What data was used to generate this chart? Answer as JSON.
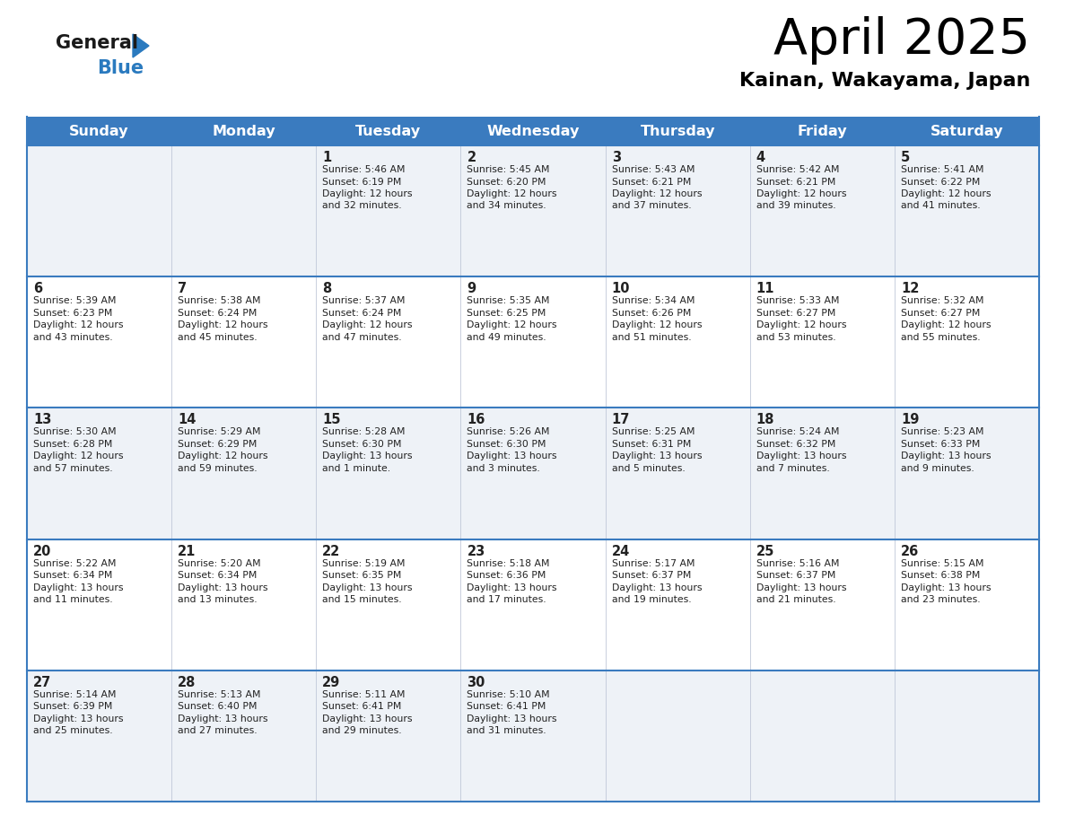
{
  "title": "April 2025",
  "subtitle": "Kainan, Wakayama, Japan",
  "header_bg": "#3a7bbf",
  "header_text_color": "#ffffff",
  "cell_bg_odd": "#eef2f7",
  "cell_bg_even": "#ffffff",
  "border_color": "#3a7bbf",
  "thin_border": "#c0c8d8",
  "text_color": "#222222",
  "day_names": [
    "Sunday",
    "Monday",
    "Tuesday",
    "Wednesday",
    "Thursday",
    "Friday",
    "Saturday"
  ],
  "logo_general_color": "#1a1a1a",
  "logo_blue_color": "#2a7abf",
  "logo_triangle_color": "#2a7abf",
  "weeks": [
    [
      {
        "day": "",
        "lines": []
      },
      {
        "day": "",
        "lines": []
      },
      {
        "day": "1",
        "lines": [
          "Sunrise: 5:46 AM",
          "Sunset: 6:19 PM",
          "Daylight: 12 hours",
          "and 32 minutes."
        ]
      },
      {
        "day": "2",
        "lines": [
          "Sunrise: 5:45 AM",
          "Sunset: 6:20 PM",
          "Daylight: 12 hours",
          "and 34 minutes."
        ]
      },
      {
        "day": "3",
        "lines": [
          "Sunrise: 5:43 AM",
          "Sunset: 6:21 PM",
          "Daylight: 12 hours",
          "and 37 minutes."
        ]
      },
      {
        "day": "4",
        "lines": [
          "Sunrise: 5:42 AM",
          "Sunset: 6:21 PM",
          "Daylight: 12 hours",
          "and 39 minutes."
        ]
      },
      {
        "day": "5",
        "lines": [
          "Sunrise: 5:41 AM",
          "Sunset: 6:22 PM",
          "Daylight: 12 hours",
          "and 41 minutes."
        ]
      }
    ],
    [
      {
        "day": "6",
        "lines": [
          "Sunrise: 5:39 AM",
          "Sunset: 6:23 PM",
          "Daylight: 12 hours",
          "and 43 minutes."
        ]
      },
      {
        "day": "7",
        "lines": [
          "Sunrise: 5:38 AM",
          "Sunset: 6:24 PM",
          "Daylight: 12 hours",
          "and 45 minutes."
        ]
      },
      {
        "day": "8",
        "lines": [
          "Sunrise: 5:37 AM",
          "Sunset: 6:24 PM",
          "Daylight: 12 hours",
          "and 47 minutes."
        ]
      },
      {
        "day": "9",
        "lines": [
          "Sunrise: 5:35 AM",
          "Sunset: 6:25 PM",
          "Daylight: 12 hours",
          "and 49 minutes."
        ]
      },
      {
        "day": "10",
        "lines": [
          "Sunrise: 5:34 AM",
          "Sunset: 6:26 PM",
          "Daylight: 12 hours",
          "and 51 minutes."
        ]
      },
      {
        "day": "11",
        "lines": [
          "Sunrise: 5:33 AM",
          "Sunset: 6:27 PM",
          "Daylight: 12 hours",
          "and 53 minutes."
        ]
      },
      {
        "day": "12",
        "lines": [
          "Sunrise: 5:32 AM",
          "Sunset: 6:27 PM",
          "Daylight: 12 hours",
          "and 55 minutes."
        ]
      }
    ],
    [
      {
        "day": "13",
        "lines": [
          "Sunrise: 5:30 AM",
          "Sunset: 6:28 PM",
          "Daylight: 12 hours",
          "and 57 minutes."
        ]
      },
      {
        "day": "14",
        "lines": [
          "Sunrise: 5:29 AM",
          "Sunset: 6:29 PM",
          "Daylight: 12 hours",
          "and 59 minutes."
        ]
      },
      {
        "day": "15",
        "lines": [
          "Sunrise: 5:28 AM",
          "Sunset: 6:30 PM",
          "Daylight: 13 hours",
          "and 1 minute."
        ]
      },
      {
        "day": "16",
        "lines": [
          "Sunrise: 5:26 AM",
          "Sunset: 6:30 PM",
          "Daylight: 13 hours",
          "and 3 minutes."
        ]
      },
      {
        "day": "17",
        "lines": [
          "Sunrise: 5:25 AM",
          "Sunset: 6:31 PM",
          "Daylight: 13 hours",
          "and 5 minutes."
        ]
      },
      {
        "day": "18",
        "lines": [
          "Sunrise: 5:24 AM",
          "Sunset: 6:32 PM",
          "Daylight: 13 hours",
          "and 7 minutes."
        ]
      },
      {
        "day": "19",
        "lines": [
          "Sunrise: 5:23 AM",
          "Sunset: 6:33 PM",
          "Daylight: 13 hours",
          "and 9 minutes."
        ]
      }
    ],
    [
      {
        "day": "20",
        "lines": [
          "Sunrise: 5:22 AM",
          "Sunset: 6:34 PM",
          "Daylight: 13 hours",
          "and 11 minutes."
        ]
      },
      {
        "day": "21",
        "lines": [
          "Sunrise: 5:20 AM",
          "Sunset: 6:34 PM",
          "Daylight: 13 hours",
          "and 13 minutes."
        ]
      },
      {
        "day": "22",
        "lines": [
          "Sunrise: 5:19 AM",
          "Sunset: 6:35 PM",
          "Daylight: 13 hours",
          "and 15 minutes."
        ]
      },
      {
        "day": "23",
        "lines": [
          "Sunrise: 5:18 AM",
          "Sunset: 6:36 PM",
          "Daylight: 13 hours",
          "and 17 minutes."
        ]
      },
      {
        "day": "24",
        "lines": [
          "Sunrise: 5:17 AM",
          "Sunset: 6:37 PM",
          "Daylight: 13 hours",
          "and 19 minutes."
        ]
      },
      {
        "day": "25",
        "lines": [
          "Sunrise: 5:16 AM",
          "Sunset: 6:37 PM",
          "Daylight: 13 hours",
          "and 21 minutes."
        ]
      },
      {
        "day": "26",
        "lines": [
          "Sunrise: 5:15 AM",
          "Sunset: 6:38 PM",
          "Daylight: 13 hours",
          "and 23 minutes."
        ]
      }
    ],
    [
      {
        "day": "27",
        "lines": [
          "Sunrise: 5:14 AM",
          "Sunset: 6:39 PM",
          "Daylight: 13 hours",
          "and 25 minutes."
        ]
      },
      {
        "day": "28",
        "lines": [
          "Sunrise: 5:13 AM",
          "Sunset: 6:40 PM",
          "Daylight: 13 hours",
          "and 27 minutes."
        ]
      },
      {
        "day": "29",
        "lines": [
          "Sunrise: 5:11 AM",
          "Sunset: 6:41 PM",
          "Daylight: 13 hours",
          "and 29 minutes."
        ]
      },
      {
        "day": "30",
        "lines": [
          "Sunrise: 5:10 AM",
          "Sunset: 6:41 PM",
          "Daylight: 13 hours",
          "and 31 minutes."
        ]
      },
      {
        "day": "",
        "lines": []
      },
      {
        "day": "",
        "lines": []
      },
      {
        "day": "",
        "lines": []
      }
    ]
  ]
}
